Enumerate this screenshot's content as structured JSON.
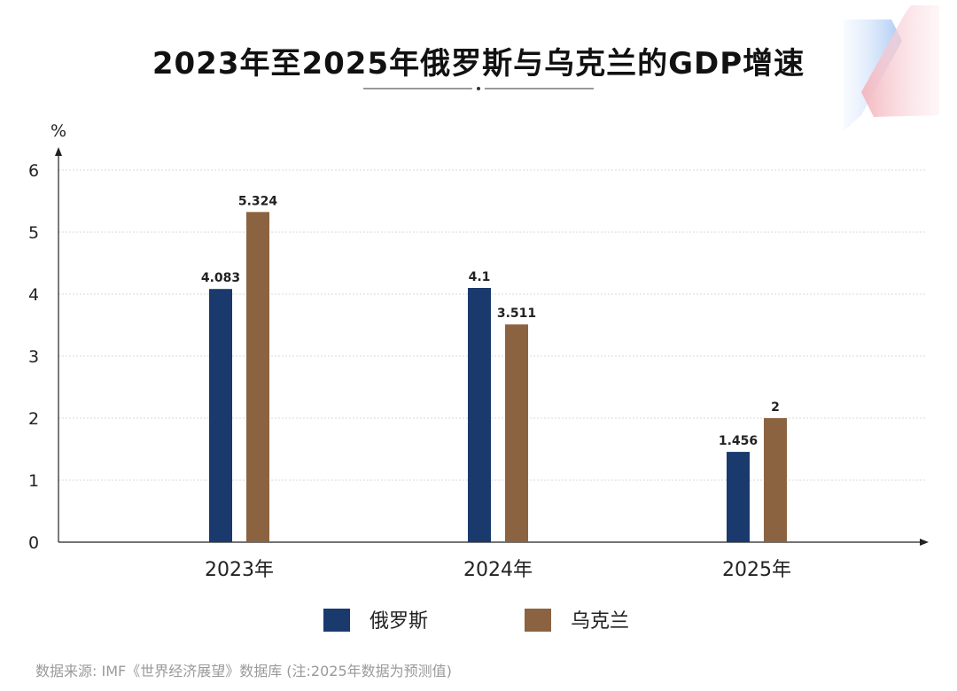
{
  "chart_data": {
    "type": "bar",
    "title": "2023年至2025年俄罗斯与乌克兰的GDP增速",
    "ylabel": "%",
    "xlabel": "",
    "ylim": [
      0,
      6
    ],
    "yticks": [
      "0",
      "1",
      "2",
      "3",
      "4",
      "5",
      "6"
    ],
    "grid": true,
    "categories": [
      "2023年",
      "2024年",
      "2025年"
    ],
    "series": [
      {
        "name": "俄罗斯",
        "color": "#1a3a6e",
        "values": [
          4.083,
          4.1,
          1.456
        ],
        "labels": [
          "4.083",
          "4.1",
          "1.456"
        ]
      },
      {
        "name": "乌克兰",
        "color": "#8b6340",
        "values": [
          5.324,
          3.511,
          2
        ],
        "labels": [
          "5.324",
          "3.511",
          "2"
        ]
      }
    ],
    "legend_position": "bottom",
    "source": "数据来源: IMF《世界经济展望》数据库  (注:2025年数据为预测值)"
  }
}
